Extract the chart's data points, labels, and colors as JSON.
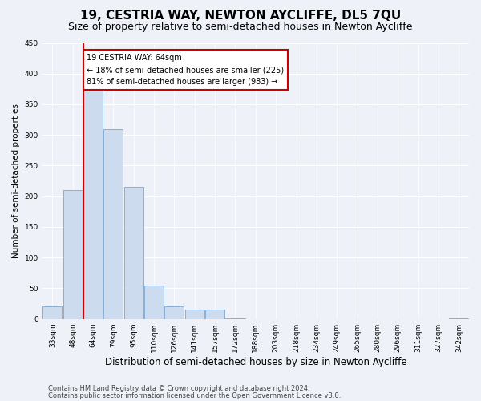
{
  "title": "19, CESTRIA WAY, NEWTON AYCLIFFE, DL5 7QU",
  "subtitle": "Size of property relative to semi-detached houses in Newton Aycliffe",
  "xlabel": "Distribution of semi-detached houses by size in Newton Aycliffe",
  "ylabel": "Number of semi-detached properties",
  "categories": [
    "33sqm",
    "48sqm",
    "64sqm",
    "79sqm",
    "95sqm",
    "110sqm",
    "126sqm",
    "141sqm",
    "157sqm",
    "172sqm",
    "188sqm",
    "203sqm",
    "218sqm",
    "234sqm",
    "249sqm",
    "265sqm",
    "280sqm",
    "296sqm",
    "311sqm",
    "327sqm",
    "342sqm"
  ],
  "values": [
    20,
    210,
    375,
    310,
    215,
    55,
    20,
    15,
    15,
    1,
    0,
    0,
    0,
    0,
    0,
    0,
    0,
    0,
    0,
    0,
    1
  ],
  "bar_color": "#ccdcee",
  "bar_edge_color": "#6699cc",
  "highlight_index": 2,
  "highlight_line_color": "#cc0000",
  "annotation_line1": "19 CESTRIA WAY: 64sqm",
  "annotation_line2": "← 18% of semi-detached houses are smaller (225)",
  "annotation_line3": "81% of semi-detached houses are larger (983) →",
  "annotation_box_color": "#ffffff",
  "annotation_box_edge": "#cc0000",
  "ylim": [
    0,
    450
  ],
  "yticks": [
    0,
    50,
    100,
    150,
    200,
    250,
    300,
    350,
    400,
    450
  ],
  "footer_line1": "Contains HM Land Registry data © Crown copyright and database right 2024.",
  "footer_line2": "Contains public sector information licensed under the Open Government Licence v3.0.",
  "bg_color": "#eef2f8",
  "grid_color": "#ffffff",
  "title_fontsize": 11,
  "subtitle_fontsize": 9,
  "xlabel_fontsize": 8.5,
  "ylabel_fontsize": 7.5,
  "tick_fontsize": 6.5,
  "annotation_fontsize": 7,
  "footer_fontsize": 6
}
